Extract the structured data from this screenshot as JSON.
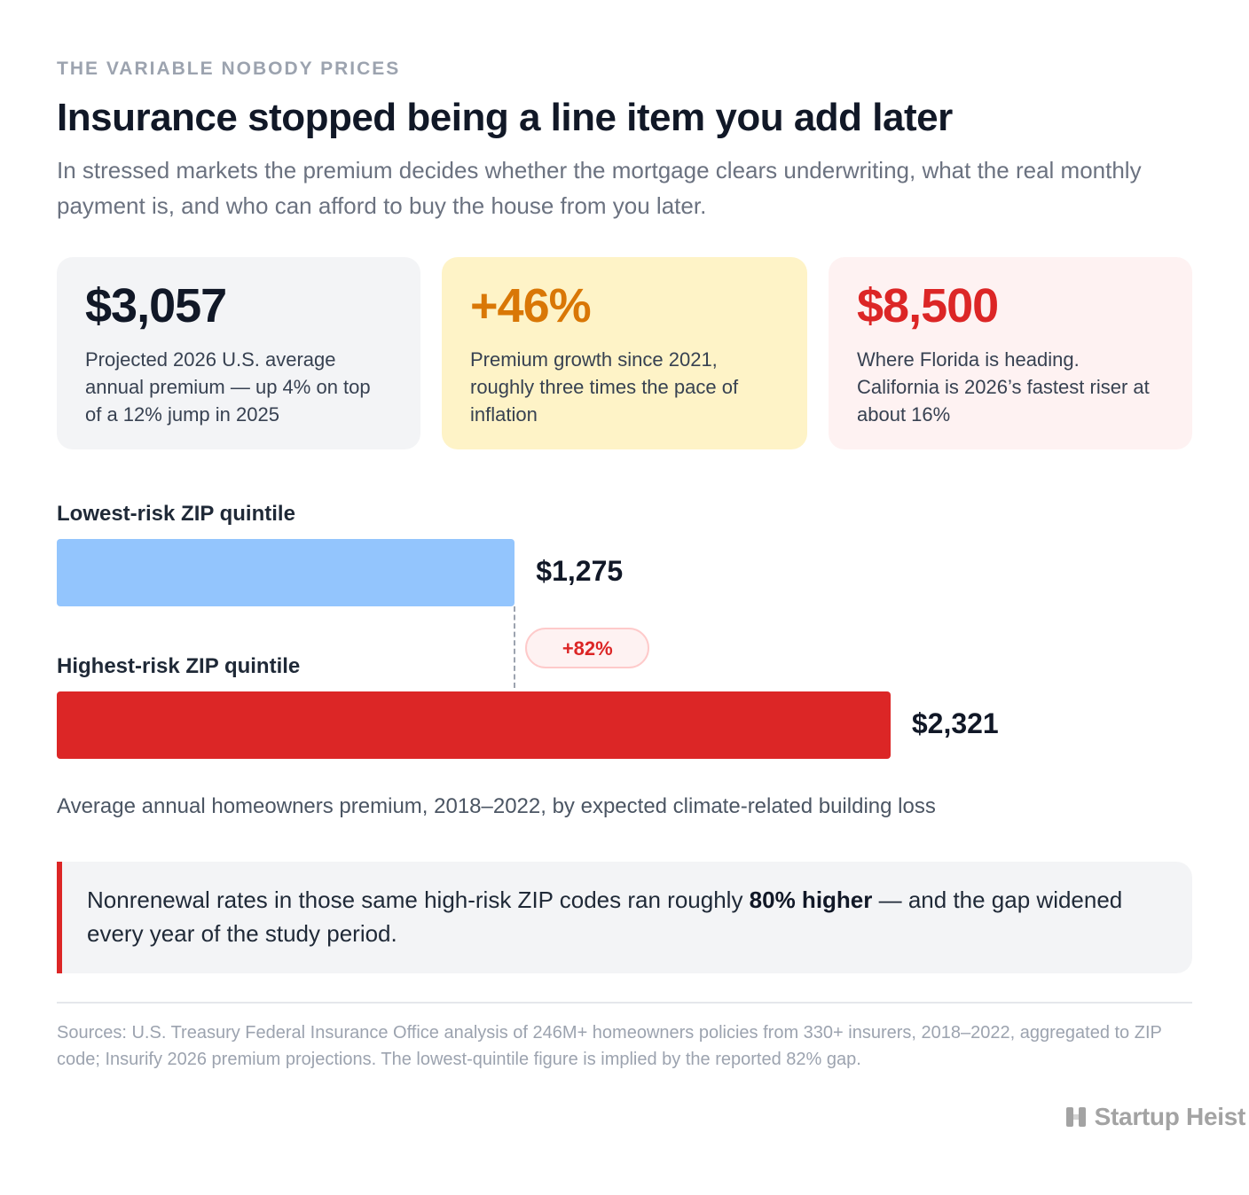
{
  "header": {
    "eyebrow": "THE VARIABLE NOBODY PRICES",
    "title": "Insurance stopped being a line item you add later",
    "subtitle": "In stressed markets the premium decides whether the mortgage clears underwriting, what the real monthly payment is, and who can afford to buy the house from you later."
  },
  "stats": [
    {
      "value": "$3,057",
      "description": "Projected 2026 U.S. average annual premium — up 4% on top of a 12% jump in 2025",
      "color": "#111827"
    },
    {
      "value": "+46%",
      "description": "Premium growth since 2021, roughly three times the pace of inflation",
      "color": "#d97706"
    },
    {
      "value": "$8,500",
      "description": "Where Florida is heading. California is 2026’s fastest riser at about 16%",
      "color": "#dc2626"
    }
  ],
  "chart_data": {
    "type": "bar",
    "orientation": "horizontal",
    "categories": [
      "Lowest-risk ZIP quintile",
      "Highest-risk ZIP quintile"
    ],
    "values": [
      1275,
      2321
    ],
    "value_labels": [
      "$1,275",
      "$2,321"
    ],
    "colors": [
      "#93c5fd",
      "#dc2626"
    ],
    "gap_label": "+82%",
    "caption": "Average annual homeowners premium, 2018–2022, by expected climate-related building loss",
    "xlim": [
      0,
      3161
    ]
  },
  "callout": {
    "text_before": "Nonrenewal rates in those same high-risk ZIP codes ran roughly ",
    "text_bold": "80% higher",
    "text_after": " — and the gap widened every year of the study period."
  },
  "footer": {
    "sources": "Sources: U.S. Treasury Federal Insurance Office analysis of 246M+ homeowners policies from 330+ insurers, 2018–2022, aggregated to ZIP code; Insurify 2026 premium projections. The lowest-quintile figure is implied by the reported 82% gap.",
    "brand": "Startup Heist",
    "brand_icon": "startup-heist-logo-icon"
  }
}
